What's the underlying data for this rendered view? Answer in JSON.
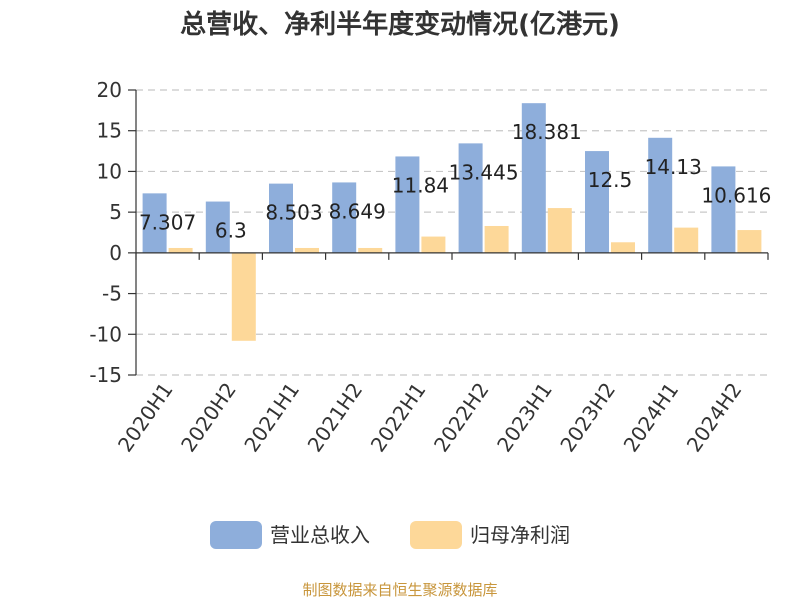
{
  "chart_data": {
    "type": "bar",
    "title": "总营收、净利半年度变动情况(亿港元)",
    "categories": [
      "2020H1",
      "2020H2",
      "2021H1",
      "2021H2",
      "2022H1",
      "2022H2",
      "2023H1",
      "2023H2",
      "2024H1",
      "2024H2"
    ],
    "series": [
      {
        "name": "营业总收入",
        "color": "#8eaedb",
        "values": [
          7.307,
          6.3,
          8.503,
          8.649,
          11.84,
          13.445,
          18.381,
          12.5,
          14.13,
          10.616
        ],
        "labels": [
          "7.307",
          "6.3",
          "8.503",
          "8.649",
          "11.84",
          "13.445",
          "18.381",
          "12.5",
          "14.13",
          "10.616"
        ]
      },
      {
        "name": "归母净利润",
        "color": "#fdd899",
        "values": [
          0.6,
          -10.8,
          0.6,
          0.6,
          2.0,
          3.3,
          5.5,
          1.3,
          3.1,
          2.8
        ]
      }
    ],
    "ylim": [
      -15,
      20
    ],
    "yticks": [
      -15,
      -10,
      -5,
      0,
      5,
      10,
      15,
      20
    ],
    "grid": true,
    "legend_position": "bottom"
  },
  "source_note": "制图数据来自恒生聚源数据库"
}
